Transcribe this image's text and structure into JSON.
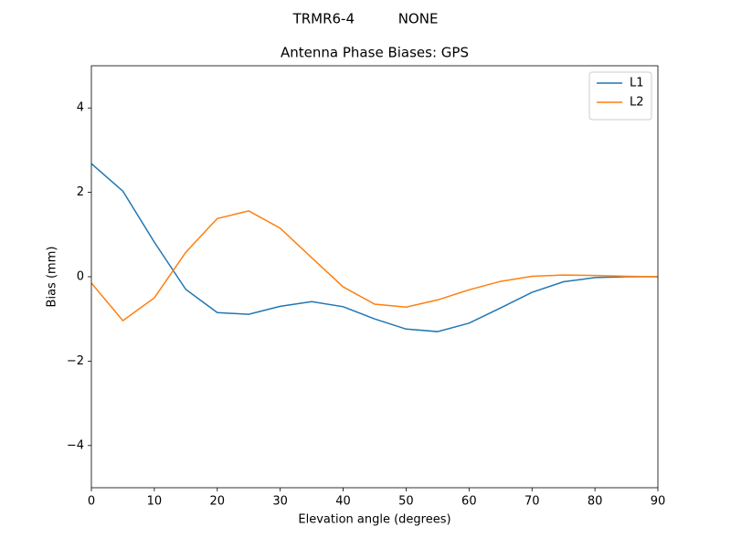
{
  "chart_data": {
    "type": "line",
    "suptitle": "TRMR6-4          NONE",
    "title": "Antenna Phase Biases: GPS",
    "xlabel": "Elevation angle (degrees)",
    "ylabel": "Bias (mm)",
    "x": [
      0,
      5,
      10,
      15,
      20,
      25,
      30,
      35,
      40,
      45,
      50,
      55,
      60,
      65,
      70,
      75,
      80,
      85,
      90
    ],
    "series": [
      {
        "name": "L1",
        "color": "#1f77b4",
        "values": [
          2.68,
          2.03,
          0.82,
          -0.3,
          -0.85,
          -0.89,
          -0.7,
          -0.59,
          -0.71,
          -1.0,
          -1.24,
          -1.3,
          -1.1,
          -0.74,
          -0.37,
          -0.12,
          -0.02,
          0.0,
          0.0
        ]
      },
      {
        "name": "L2",
        "color": "#ff7f0e",
        "values": [
          -0.15,
          -1.04,
          -0.5,
          0.58,
          1.38,
          1.56,
          1.15,
          0.45,
          -0.24,
          -0.65,
          -0.72,
          -0.55,
          -0.31,
          -0.11,
          0.01,
          0.04,
          0.03,
          0.01,
          0.0
        ]
      }
    ],
    "xlim": [
      0,
      90
    ],
    "xticks": [
      0,
      10,
      20,
      30,
      40,
      50,
      60,
      70,
      80,
      90
    ],
    "ylim": [
      -5,
      5
    ],
    "yticks": [
      {
        "value": -4,
        "label": "−4"
      },
      {
        "value": -2,
        "label": "−2"
      },
      0,
      2,
      4
    ],
    "legend": "upper right",
    "grid": false
  }
}
